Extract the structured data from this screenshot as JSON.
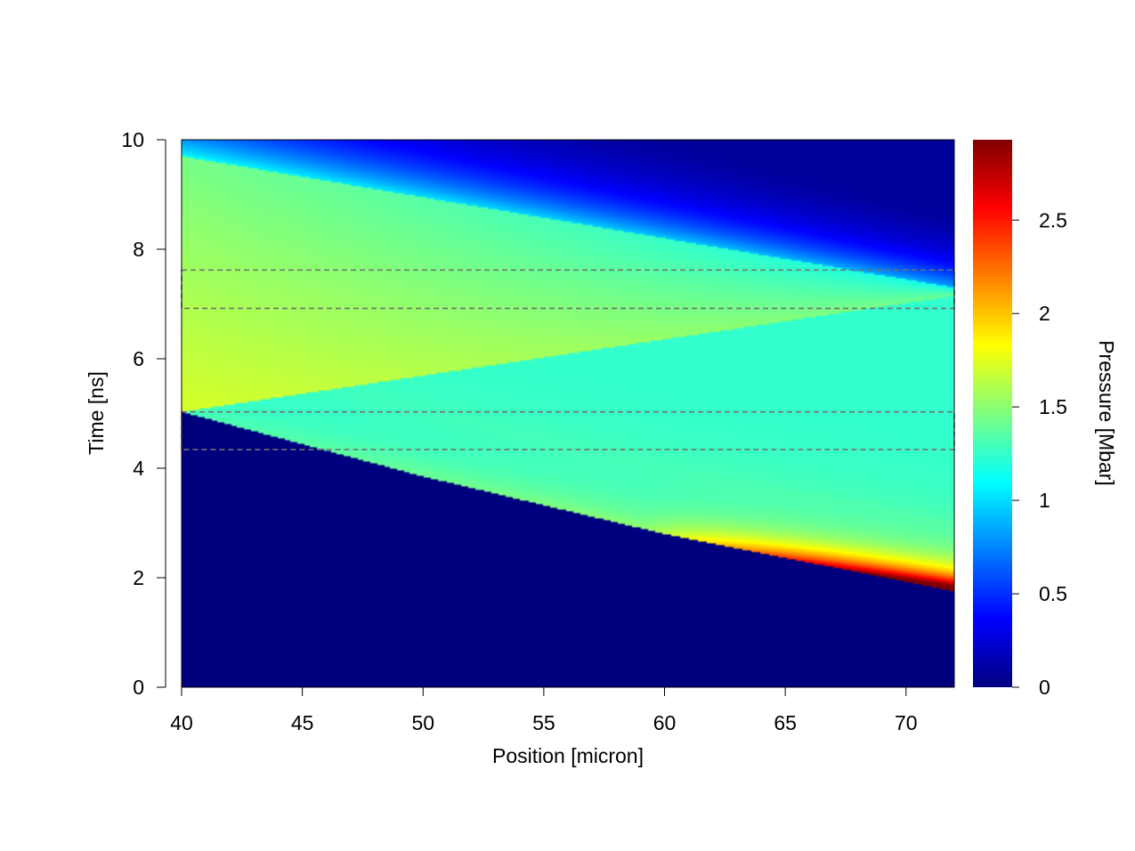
{
  "chart_data": {
    "type": "heatmap",
    "title": "",
    "xlabel": "Position [micron]",
    "ylabel": "Time [ns]",
    "colorbar_label": "Pressure [Mbar]",
    "xlim": [
      40,
      72
    ],
    "ylim": [
      0,
      10
    ],
    "xticks": [
      "40",
      "45",
      "50",
      "55",
      "60",
      "65",
      "70"
    ],
    "yticks": [
      "0",
      "2",
      "4",
      "6",
      "8",
      "10"
    ],
    "colorbar_range": [
      0,
      2.93
    ],
    "colorbar_ticks": [
      "0",
      "0.5",
      "1",
      "1.5",
      "2",
      "2.5"
    ],
    "colormap": "jet",
    "colormap_stops": [
      "#00007f",
      "#0000ff",
      "#007fff",
      "#00ffff",
      "#7fff7f",
      "#ffff00",
      "#ff7f00",
      "#ff0000",
      "#7f0000"
    ],
    "grid": false,
    "field_features": {
      "shock_front": [
        {
          "x": 40,
          "t": 5.03
        },
        {
          "x": 50,
          "t": 3.85
        },
        {
          "x": 60,
          "t": 2.8
        },
        {
          "x": 72,
          "t": 1.75
        }
      ],
      "reflected_wave": [
        {
          "x": 40,
          "t": 5.03
        },
        {
          "x": 72,
          "t": 7.15
        }
      ],
      "release_front": [
        {
          "x": 40,
          "t": 9.7
        },
        {
          "x": 72,
          "t": 7.3
        }
      ],
      "shocked_pressure": 1.25,
      "reshocked_pressure": 1.6,
      "peak_pressure": 2.9
    },
    "highlight_bands": [
      {
        "t_min": 6.92,
        "t_max": 7.62
      },
      {
        "t_min": 4.34,
        "t_max": 5.03
      }
    ]
  }
}
